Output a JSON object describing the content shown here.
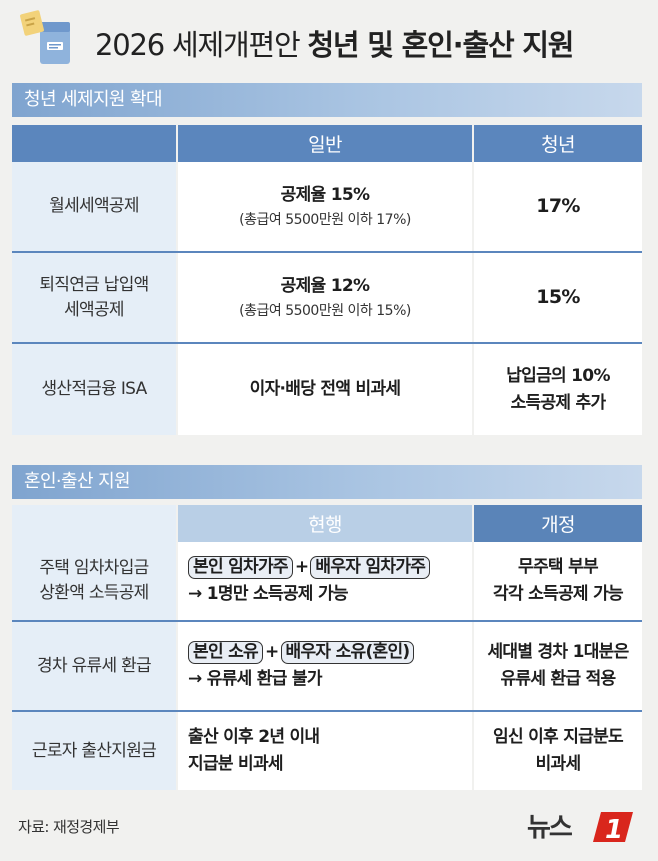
{
  "header": {
    "title_regular": "2026 세제개편안 ",
    "title_bold": "청년 및 혼인·출산 지원"
  },
  "section1": {
    "title": "청년 세제지원 확대",
    "columns": [
      "",
      "일반",
      "청년"
    ],
    "rows": [
      {
        "label_lines": [
          "월세세액공제"
        ],
        "general_main": "공제율 15%",
        "general_sub": "(총급여 5500만원 이하 17%)",
        "youth_lines": [
          "17%"
        ]
      },
      {
        "label_lines": [
          "퇴직연금 납입액",
          "세액공제"
        ],
        "general_main": "공제율 12%",
        "general_sub": "(총급여 5500만원 이하 15%)",
        "youth_lines": [
          "15%"
        ]
      },
      {
        "label_lines": [
          "생산적금융 ISA"
        ],
        "general_main": "이자·배당 전액 비과세",
        "general_sub": "",
        "youth_lines": [
          "납입금의 10%",
          "소득공제 추가"
        ]
      }
    ]
  },
  "section2": {
    "title": "혼인·출산 지원",
    "columns": [
      "",
      "현행",
      "개정"
    ],
    "rows": [
      {
        "label_lines": [
          "주택 임차차입금",
          "상환액 소득공제"
        ],
        "chip1": "본인 임차가주",
        "chip2": "배우자 임차가주",
        "current_line": "→ 1명만 소득공제 가능",
        "revised_lines": [
          "무주택 부부",
          "각각 소득공제 가능"
        ]
      },
      {
        "label_lines": [
          "경차 유류세 환급"
        ],
        "chip1": "본인 소유",
        "chip2": "배우자 소유(혼인)",
        "current_line": "→ 유류세 환급 불가",
        "revised_lines": [
          "세대별 경차 1대분은",
          "유류세 환급 적용"
        ]
      },
      {
        "label_lines": [
          "근로자 출산지원금"
        ],
        "current_lines": [
          "출산 이후 2년 이내",
          "지급분 비과세"
        ],
        "revised_lines": [
          "임신 이후 지급분도",
          "비과세"
        ]
      }
    ],
    "plus_sign": "+"
  },
  "footer": {
    "source": "자료: 재정경제부",
    "brand_text": "뉴스",
    "brand_number": "1"
  },
  "colors": {
    "header_blue": "#5b86bd",
    "label_bg": "#e5eef7",
    "brand_red": "#d9261c"
  }
}
